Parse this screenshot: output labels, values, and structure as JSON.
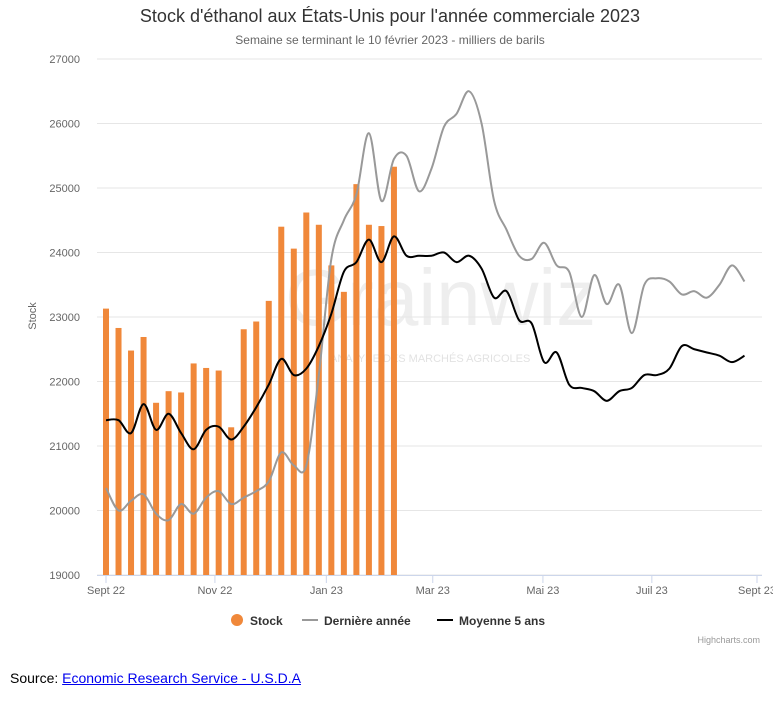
{
  "chart_data": {
    "type": "bar",
    "title": "Stock d'éthanol aux États-Unis pour l'année commerciale 2023",
    "subtitle": "Semaine se terminant le 10 février 2023 - milliers de barils",
    "ylabel": "Stock",
    "ylim": [
      19000,
      27000
    ],
    "y_ticks": [
      19000,
      20000,
      21000,
      22000,
      23000,
      24000,
      25000,
      26000,
      27000
    ],
    "x_range": [
      0,
      52
    ],
    "x_ticks": [
      {
        "x": 0,
        "label": "Sept 22"
      },
      {
        "x": 8.7,
        "label": "Nov 22"
      },
      {
        "x": 17.6,
        "label": "Jan 23"
      },
      {
        "x": 26.1,
        "label": "Mar 23"
      },
      {
        "x": 34.9,
        "label": "Mai 23"
      },
      {
        "x": 43.6,
        "label": "Juil 23"
      },
      {
        "x": 52,
        "label": "Sept 23"
      }
    ],
    "series": [
      {
        "name": "Stock",
        "kind": "column",
        "color": "#f0883a",
        "values": [
          23130,
          22830,
          22480,
          22690,
          21670,
          21850,
          21830,
          22280,
          22210,
          22170,
          21290,
          22810,
          22930,
          23250,
          24400,
          24060,
          24620,
          24430,
          23800,
          23390,
          25060,
          24430,
          24410,
          25330
        ]
      },
      {
        "name": "Dernière année",
        "kind": "line",
        "color": "#999999",
        "values": [
          20350,
          20000,
          20150,
          20250,
          19950,
          19850,
          20100,
          19950,
          20200,
          20300,
          20100,
          20200,
          20300,
          20450,
          20900,
          20700,
          20700,
          22100,
          23900,
          24500,
          24900,
          25850,
          24800,
          25450,
          25500,
          24950,
          25300,
          25950,
          26150,
          26500,
          26000,
          24800,
          24350,
          23950,
          23900,
          24150,
          23800,
          23700,
          23000,
          23650,
          23200,
          23500,
          22750,
          23500,
          23600,
          23550,
          23350,
          23400,
          23300,
          23500,
          23800,
          23550
        ]
      },
      {
        "name": "Moyenne 5 ans",
        "kind": "line",
        "color": "#000000",
        "values": [
          21400,
          21400,
          21200,
          21650,
          21250,
          21500,
          21200,
          20950,
          21250,
          21300,
          21100,
          21300,
          21600,
          21950,
          22350,
          22100,
          22200,
          22550,
          23050,
          23700,
          23850,
          24200,
          23850,
          24250,
          23950,
          23950,
          23950,
          24000,
          23850,
          23950,
          23750,
          23300,
          23400,
          22950,
          22900,
          22300,
          22450,
          21950,
          21900,
          21850,
          21700,
          21850,
          21900,
          22100,
          22100,
          22200,
          22550,
          22500,
          22450,
          22400,
          22300,
          22400
        ]
      }
    ],
    "legend_position": "bottom",
    "grid": "horizontal"
  },
  "credits": "Highcharts.com",
  "watermark": {
    "text": "Grainwiz",
    "tagline": "ANALYSE DES MARCHÉS AGRICOLES"
  },
  "source": {
    "prefix": "Source: ",
    "link_text": "Economic Research Service - U.S.D.A"
  }
}
